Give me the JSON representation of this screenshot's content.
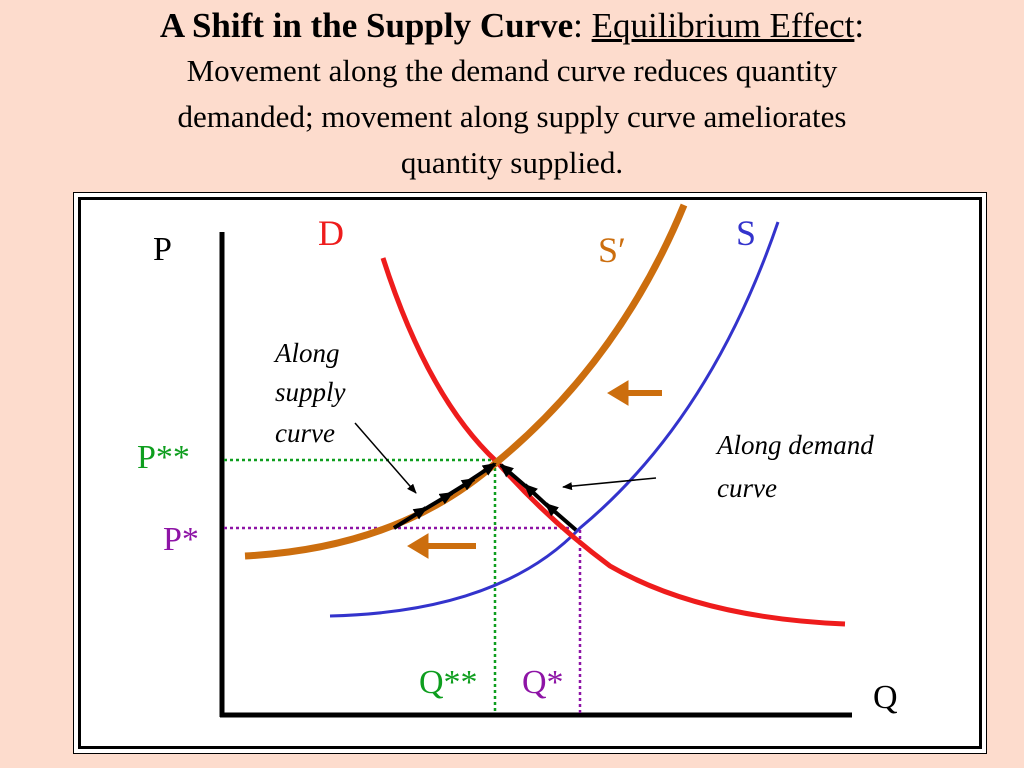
{
  "title": {
    "bold_part": "A Shift in the Supply Curve",
    "colon1": ": ",
    "underlined_part": "Equilibrium Effect",
    "colon2": ":",
    "subtitle_lines": [
      "Movement along the demand curve reduces quantity",
      "demanded; movement along supply curve ameliorates",
      "quantity supplied."
    ]
  },
  "diagram": {
    "axis_labels": {
      "price": "P",
      "quantity": "Q"
    },
    "curves": {
      "demand": {
        "label": "D",
        "color": "#ee1c1c"
      },
      "supply": {
        "label": "S",
        "color": "#3333cc"
      },
      "supply_shifted": {
        "label": "S′",
        "color": "#cc6e0e"
      }
    },
    "prices": {
      "new": {
        "label": "P**",
        "color": "#0e9e1e"
      },
      "old": {
        "label": "P*",
        "color": "#8e14a6"
      }
    },
    "quantities": {
      "new": {
        "label": "Q**",
        "color": "#0e9e1e"
      },
      "old": {
        "label": "Q*",
        "color": "#8e14a6"
      }
    },
    "annotations": {
      "along_supply": [
        "Along",
        "supply",
        "curve"
      ],
      "along_demand": [
        "Along demand",
        "curve"
      ]
    },
    "shift_direction": "left",
    "arrow_color": "#000000"
  }
}
